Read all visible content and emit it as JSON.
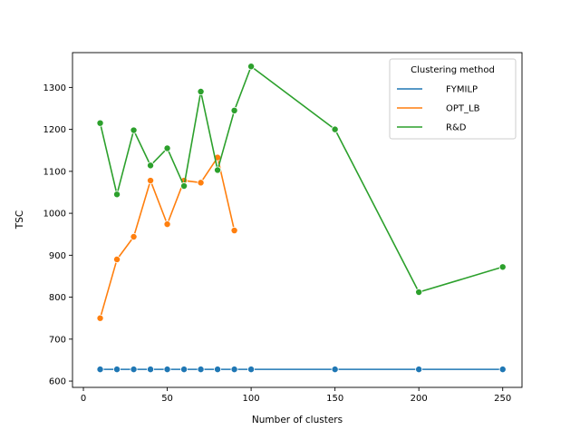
{
  "chart_data": {
    "type": "line",
    "title": "",
    "xlabel": "Number of clusters",
    "ylabel": "TSC",
    "xlim": [
      -6.5,
      261.5
    ],
    "ylim": [
      585,
      1383
    ],
    "xticks": [
      0,
      50,
      100,
      150,
      200,
      250
    ],
    "yticks": [
      600,
      700,
      800,
      900,
      1000,
      1100,
      1200,
      1300
    ],
    "grid": false,
    "legend": {
      "title": "Clustering method",
      "placement": "top-right"
    },
    "series": [
      {
        "name": "FYMILP",
        "color": "#1f77b4",
        "x": [
          10,
          20,
          30,
          40,
          50,
          60,
          70,
          80,
          90,
          100,
          150,
          200,
          250
        ],
        "y": [
          628,
          628,
          628,
          628,
          628,
          628,
          628,
          628,
          628,
          628,
          628,
          628,
          628
        ]
      },
      {
        "name": "OPT_LB",
        "color": "#ff7f0e",
        "x": [
          10,
          20,
          30,
          40,
          50,
          60,
          70,
          80,
          90
        ],
        "y": [
          750,
          890,
          944,
          1078,
          974,
          1078,
          1073,
          1133,
          959
        ]
      },
      {
        "name": "R&D",
        "color": "#2ca02c",
        "x": [
          10,
          20,
          30,
          40,
          50,
          60,
          70,
          80,
          90,
          100,
          150,
          200,
          250
        ],
        "y": [
          1215,
          1045,
          1198,
          1114,
          1155,
          1065,
          1290,
          1103,
          1245,
          1350,
          1200,
          812,
          872
        ]
      }
    ]
  }
}
